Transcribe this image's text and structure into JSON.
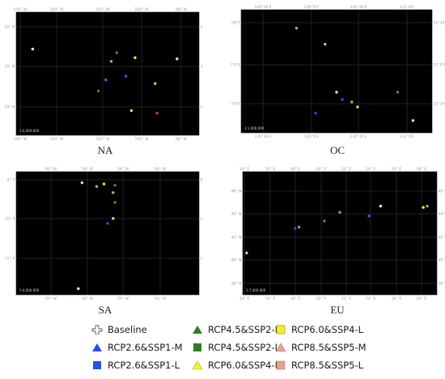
{
  "panels": [
    {
      "id": "NA",
      "title": "NA",
      "scale": "1:4,000,000",
      "x_ticks": [
        "106° W",
        "104° W",
        "102° W",
        "100° W",
        "98° W"
      ],
      "y_ticks": [
        "32° N",
        "30° N",
        "28° N"
      ],
      "points": [
        {
          "lon": 0.09,
          "lat": 0.3,
          "c": "#f5f0a0"
        },
        {
          "lon": 0.55,
          "lat": 0.33,
          "c": "#3c9a2a"
        },
        {
          "lon": 0.52,
          "lat": 0.4,
          "c": "#9dc23a"
        },
        {
          "lon": 0.65,
          "lat": 0.37,
          "c": "#f4ef2a"
        },
        {
          "lon": 0.88,
          "lat": 0.38,
          "c": "#f4ef6a"
        },
        {
          "lon": 0.6,
          "lat": 0.52,
          "c": "#3c58d8"
        },
        {
          "lon": 0.49,
          "lat": 0.55,
          "c": "#4a64e0"
        },
        {
          "lon": 0.76,
          "lat": 0.58,
          "c": "#f3c94a"
        },
        {
          "lon": 0.45,
          "lat": 0.64,
          "c": "#9a5a3a"
        },
        {
          "lon": 0.63,
          "lat": 0.8,
          "c": "#e8e04a"
        },
        {
          "lon": 0.77,
          "lat": 0.82,
          "c": "#c84a4a"
        }
      ]
    },
    {
      "id": "OC",
      "title": "OC",
      "scale": "1:1,000,000",
      "x_ticks": [
        "129°30'E",
        "130°0'E",
        "130°30'E",
        "131°0'E"
      ],
      "y_ticks": [
        "21°30'S",
        "22°0'S",
        "22°30'S"
      ],
      "points": [
        {
          "lon": 0.29,
          "lat": 0.15,
          "c": "#e89a8a"
        },
        {
          "lon": 0.44,
          "lat": 0.28,
          "c": "#f4b0a0"
        },
        {
          "lon": 0.5,
          "lat": 0.67,
          "c": "#f4ef6a"
        },
        {
          "lon": 0.53,
          "lat": 0.73,
          "c": "#3c58d8"
        },
        {
          "lon": 0.58,
          "lat": 0.75,
          "c": "#9dc23a"
        },
        {
          "lon": 0.61,
          "lat": 0.79,
          "c": "#e8e04a"
        },
        {
          "lon": 0.39,
          "lat": 0.84,
          "c": "#2a50e8"
        },
        {
          "lon": 0.82,
          "lat": 0.67,
          "c": "#3c9a2a"
        },
        {
          "lon": 0.9,
          "lat": 0.9,
          "c": "#f4ef9a"
        }
      ]
    },
    {
      "id": "SA",
      "title": "SA",
      "scale": "1:4,000,000",
      "x_ticks": [
        "60° W",
        "58° W",
        "56° W",
        "54° W"
      ],
      "y_ticks": [
        "8° S",
        "10° S",
        "12° S"
      ],
      "points": [
        {
          "lon": 0.36,
          "lat": 0.09,
          "c": "#f4ef6a"
        },
        {
          "lon": 0.44,
          "lat": 0.12,
          "c": "#d49a6a"
        },
        {
          "lon": 0.48,
          "lat": 0.1,
          "c": "#f4ef2a"
        },
        {
          "lon": 0.54,
          "lat": 0.11,
          "c": "#3c9a2a"
        },
        {
          "lon": 0.53,
          "lat": 0.17,
          "c": "#9dc23a"
        },
        {
          "lon": 0.54,
          "lat": 0.25,
          "c": "#3c9a2a"
        },
        {
          "lon": 0.53,
          "lat": 0.38,
          "c": "#e8e04a"
        },
        {
          "lon": 0.5,
          "lat": 0.42,
          "c": "#2a50e8"
        },
        {
          "lon": 0.34,
          "lat": 0.95,
          "c": "#f4f0c0"
        }
      ]
    },
    {
      "id": "EU",
      "title": "EU",
      "scale": "1:7,000,000",
      "x_ticks": [
        "14° E",
        "16° E",
        "18° E",
        "20° E",
        "22° E",
        "24° E",
        "26° E",
        "28° E"
      ],
      "y_ticks": [
        "46° N",
        "44° N",
        "42° N",
        "40° N",
        "38° N"
      ],
      "points": [
        {
          "lon": 0.02,
          "lat": 0.66,
          "c": "#e8e04a"
        },
        {
          "lon": 0.27,
          "lat": 0.46,
          "c": "#2a50e8"
        },
        {
          "lon": 0.29,
          "lat": 0.45,
          "c": "#d87a7a"
        },
        {
          "lon": 0.42,
          "lat": 0.4,
          "c": "#3c9a2a"
        },
        {
          "lon": 0.5,
          "lat": 0.33,
          "c": "#d87aa0"
        },
        {
          "lon": 0.65,
          "lat": 0.36,
          "c": "#3c58d8"
        },
        {
          "lon": 0.71,
          "lat": 0.28,
          "c": "#f4f0e0"
        },
        {
          "lon": 0.93,
          "lat": 0.29,
          "c": "#f4ef2a"
        },
        {
          "lon": 0.95,
          "lat": 0.28,
          "c": "#9dc23a"
        }
      ]
    }
  ],
  "legend": [
    {
      "label": "Baseline",
      "shape": "cross",
      "color": "#ffffff",
      "stroke": "#555555"
    },
    {
      "label": "RCP4.5&SSP2-M",
      "shape": "triangle",
      "color": "#2e7d1e",
      "stroke": "#2e7d1e"
    },
    {
      "label": "RCP6.0&SSP4-L",
      "shape": "square",
      "color": "#f4ef2a",
      "stroke": "#b0a820"
    },
    {
      "label": "RCP2.6&SSP1-M",
      "shape": "triangle",
      "color": "#2a50e8",
      "stroke": "#2a50e8"
    },
    {
      "label": "RCP4.5&SSP2-L",
      "shape": "square",
      "color": "#2e7d1e",
      "stroke": "#2e7d1e"
    },
    {
      "label": "RCP8.5&SSP5-M",
      "shape": "triangle",
      "color": "#e8a090",
      "stroke": "#c08070"
    },
    {
      "label": "RCP2.6&SSP1-L",
      "shape": "square",
      "color": "#2a50e8",
      "stroke": "#2a50e8"
    },
    {
      "label": "RCP6.0&SSP4-M",
      "shape": "triangle",
      "color": "#f4ef2a",
      "stroke": "#b0a820"
    },
    {
      "label": "RCP8.5&SSP5-L",
      "shape": "square",
      "color": "#e8a090",
      "stroke": "#c08070"
    }
  ]
}
